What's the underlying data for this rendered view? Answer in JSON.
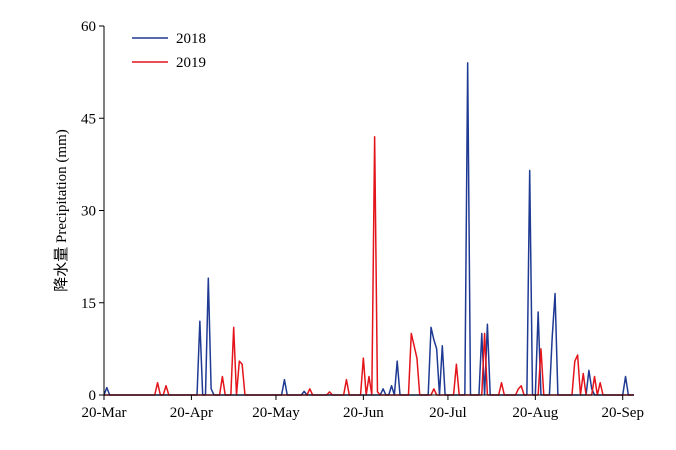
{
  "chart_data": {
    "type": "line",
    "xlabel": "",
    "ylabel": "降水量 Precipitation (mm)",
    "ylim": [
      0,
      60
    ],
    "yticks": [
      0,
      15,
      30,
      45,
      60
    ],
    "xlim_days": [
      0,
      188
    ],
    "xticks": [
      {
        "label": "20-Mar",
        "day": 0
      },
      {
        "label": "20-Apr",
        "day": 31
      },
      {
        "label": "20-May",
        "day": 61
      },
      {
        "label": "20-Jun",
        "day": 92
      },
      {
        "label": "20-Jul",
        "day": 122
      },
      {
        "label": "20-Aug",
        "day": 153
      },
      {
        "label": "20-Sep",
        "day": 184
      }
    ],
    "legend_position": "top-left",
    "grid": false,
    "series": [
      {
        "name": "2018",
        "color": "#1f3a93",
        "points": [
          [
            0,
            0
          ],
          [
            1,
            1.2
          ],
          [
            2,
            0
          ],
          [
            33,
            0
          ],
          [
            34,
            12
          ],
          [
            35,
            0
          ],
          [
            36,
            0
          ],
          [
            37,
            19
          ],
          [
            38,
            1
          ],
          [
            39,
            0
          ],
          [
            63,
            0
          ],
          [
            64,
            2.5
          ],
          [
            65,
            0
          ],
          [
            70,
            0
          ],
          [
            71,
            0.6
          ],
          [
            72,
            0
          ],
          [
            98,
            0
          ],
          [
            99,
            1
          ],
          [
            100,
            0
          ],
          [
            101,
            0
          ],
          [
            102,
            1.5
          ],
          [
            103,
            0
          ],
          [
            104,
            5.5
          ],
          [
            105,
            0
          ],
          [
            115,
            0
          ],
          [
            116,
            11
          ],
          [
            117,
            9
          ],
          [
            118,
            7.5
          ],
          [
            119,
            0
          ],
          [
            120,
            8
          ],
          [
            121,
            0
          ],
          [
            128,
            0
          ],
          [
            129,
            54
          ],
          [
            130,
            0
          ],
          [
            133,
            0
          ],
          [
            134,
            10
          ],
          [
            135,
            0
          ],
          [
            136,
            11.5
          ],
          [
            137,
            0
          ],
          [
            150,
            0
          ],
          [
            151,
            36.5
          ],
          [
            152,
            0
          ],
          [
            153,
            0
          ],
          [
            154,
            13.5
          ],
          [
            155,
            0
          ],
          [
            158,
            0
          ],
          [
            159,
            9.5
          ],
          [
            160,
            16.5
          ],
          [
            161,
            0
          ],
          [
            171,
            0
          ],
          [
            172,
            4
          ],
          [
            173,
            1
          ],
          [
            174,
            0
          ],
          [
            184,
            0
          ],
          [
            185,
            3
          ],
          [
            186,
            0
          ]
        ]
      },
      {
        "name": "2019",
        "color": "#e3141b",
        "points": [
          [
            18,
            0
          ],
          [
            19,
            2
          ],
          [
            20,
            0
          ],
          [
            21,
            0
          ],
          [
            22,
            1.5
          ],
          [
            23,
            0
          ],
          [
            41,
            0
          ],
          [
            42,
            3
          ],
          [
            43,
            0
          ],
          [
            45,
            0
          ],
          [
            46,
            11
          ],
          [
            47,
            0
          ],
          [
            48,
            5.5
          ],
          [
            49,
            5
          ],
          [
            50,
            0
          ],
          [
            72,
            0
          ],
          [
            73,
            1
          ],
          [
            74,
            0
          ],
          [
            79,
            0
          ],
          [
            80,
            0.5
          ],
          [
            81,
            0
          ],
          [
            85,
            0
          ],
          [
            86,
            2.5
          ],
          [
            87,
            0
          ],
          [
            91,
            0
          ],
          [
            92,
            6
          ],
          [
            93,
            0
          ],
          [
            94,
            3
          ],
          [
            95,
            0
          ],
          [
            96,
            42
          ],
          [
            97,
            0.5
          ],
          [
            98,
            0
          ],
          [
            108,
            0
          ],
          [
            109,
            10
          ],
          [
            110,
            8
          ],
          [
            111,
            6
          ],
          [
            112,
            0
          ],
          [
            116,
            0
          ],
          [
            117,
            1
          ],
          [
            118,
            0
          ],
          [
            124,
            0
          ],
          [
            125,
            5
          ],
          [
            126,
            0
          ],
          [
            134,
            0
          ],
          [
            135,
            10
          ],
          [
            136,
            0
          ],
          [
            140,
            0
          ],
          [
            141,
            2
          ],
          [
            142,
            0
          ],
          [
            146,
            0
          ],
          [
            147,
            1
          ],
          [
            148,
            1.5
          ],
          [
            149,
            0
          ],
          [
            154,
            0
          ],
          [
            155,
            7.5
          ],
          [
            156,
            0
          ],
          [
            166,
            0
          ],
          [
            167,
            5.5
          ],
          [
            168,
            6.5
          ],
          [
            169,
            0
          ],
          [
            170,
            3.5
          ],
          [
            171,
            0
          ],
          [
            173,
            0
          ],
          [
            174,
            3
          ],
          [
            175,
            0
          ],
          [
            176,
            2
          ],
          [
            177,
            0
          ]
        ]
      }
    ]
  }
}
